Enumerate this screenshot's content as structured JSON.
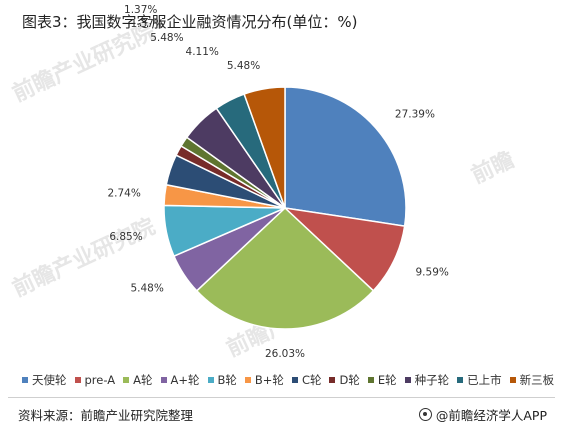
{
  "header": {
    "title": "图表3：我国数字客服企业融资情况分布(单位：%)"
  },
  "footer": {
    "source": "资料来源：前瞻产业研究院整理",
    "brand": "@前瞻经济学人APP"
  },
  "chart_data": {
    "type": "pie",
    "title": "图表3：我国数字客服企业融资情况分布(单位：%)",
    "categories": [
      "天使轮",
      "pre-A",
      "A轮",
      "A+轮",
      "B轮",
      "B+轮",
      "C轮",
      "D轮",
      "E轮",
      "种子轮",
      "已上市",
      "新三板"
    ],
    "values": [
      27.39,
      9.59,
      26.03,
      5.48,
      6.85,
      2.74,
      4.11,
      1.37,
      1.37,
      5.48,
      4.11,
      5.48
    ],
    "value_labels": [
      "27.39%",
      "9.59%",
      "26.03%",
      "5.48%",
      "6.85%",
      "2.74%",
      "4.11%",
      "1.37%",
      "1.37%",
      "5.48%",
      "4.11%",
      "5.48%"
    ],
    "colors": [
      "#4f81bd",
      "#c0504d",
      "#9bbb59",
      "#8064a2",
      "#4bacc6",
      "#f79646",
      "#2c4d75",
      "#772c2a",
      "#5f7530",
      "#4d3b62",
      "#276a7c",
      "#b65708"
    ],
    "legend_position": "bottom"
  }
}
